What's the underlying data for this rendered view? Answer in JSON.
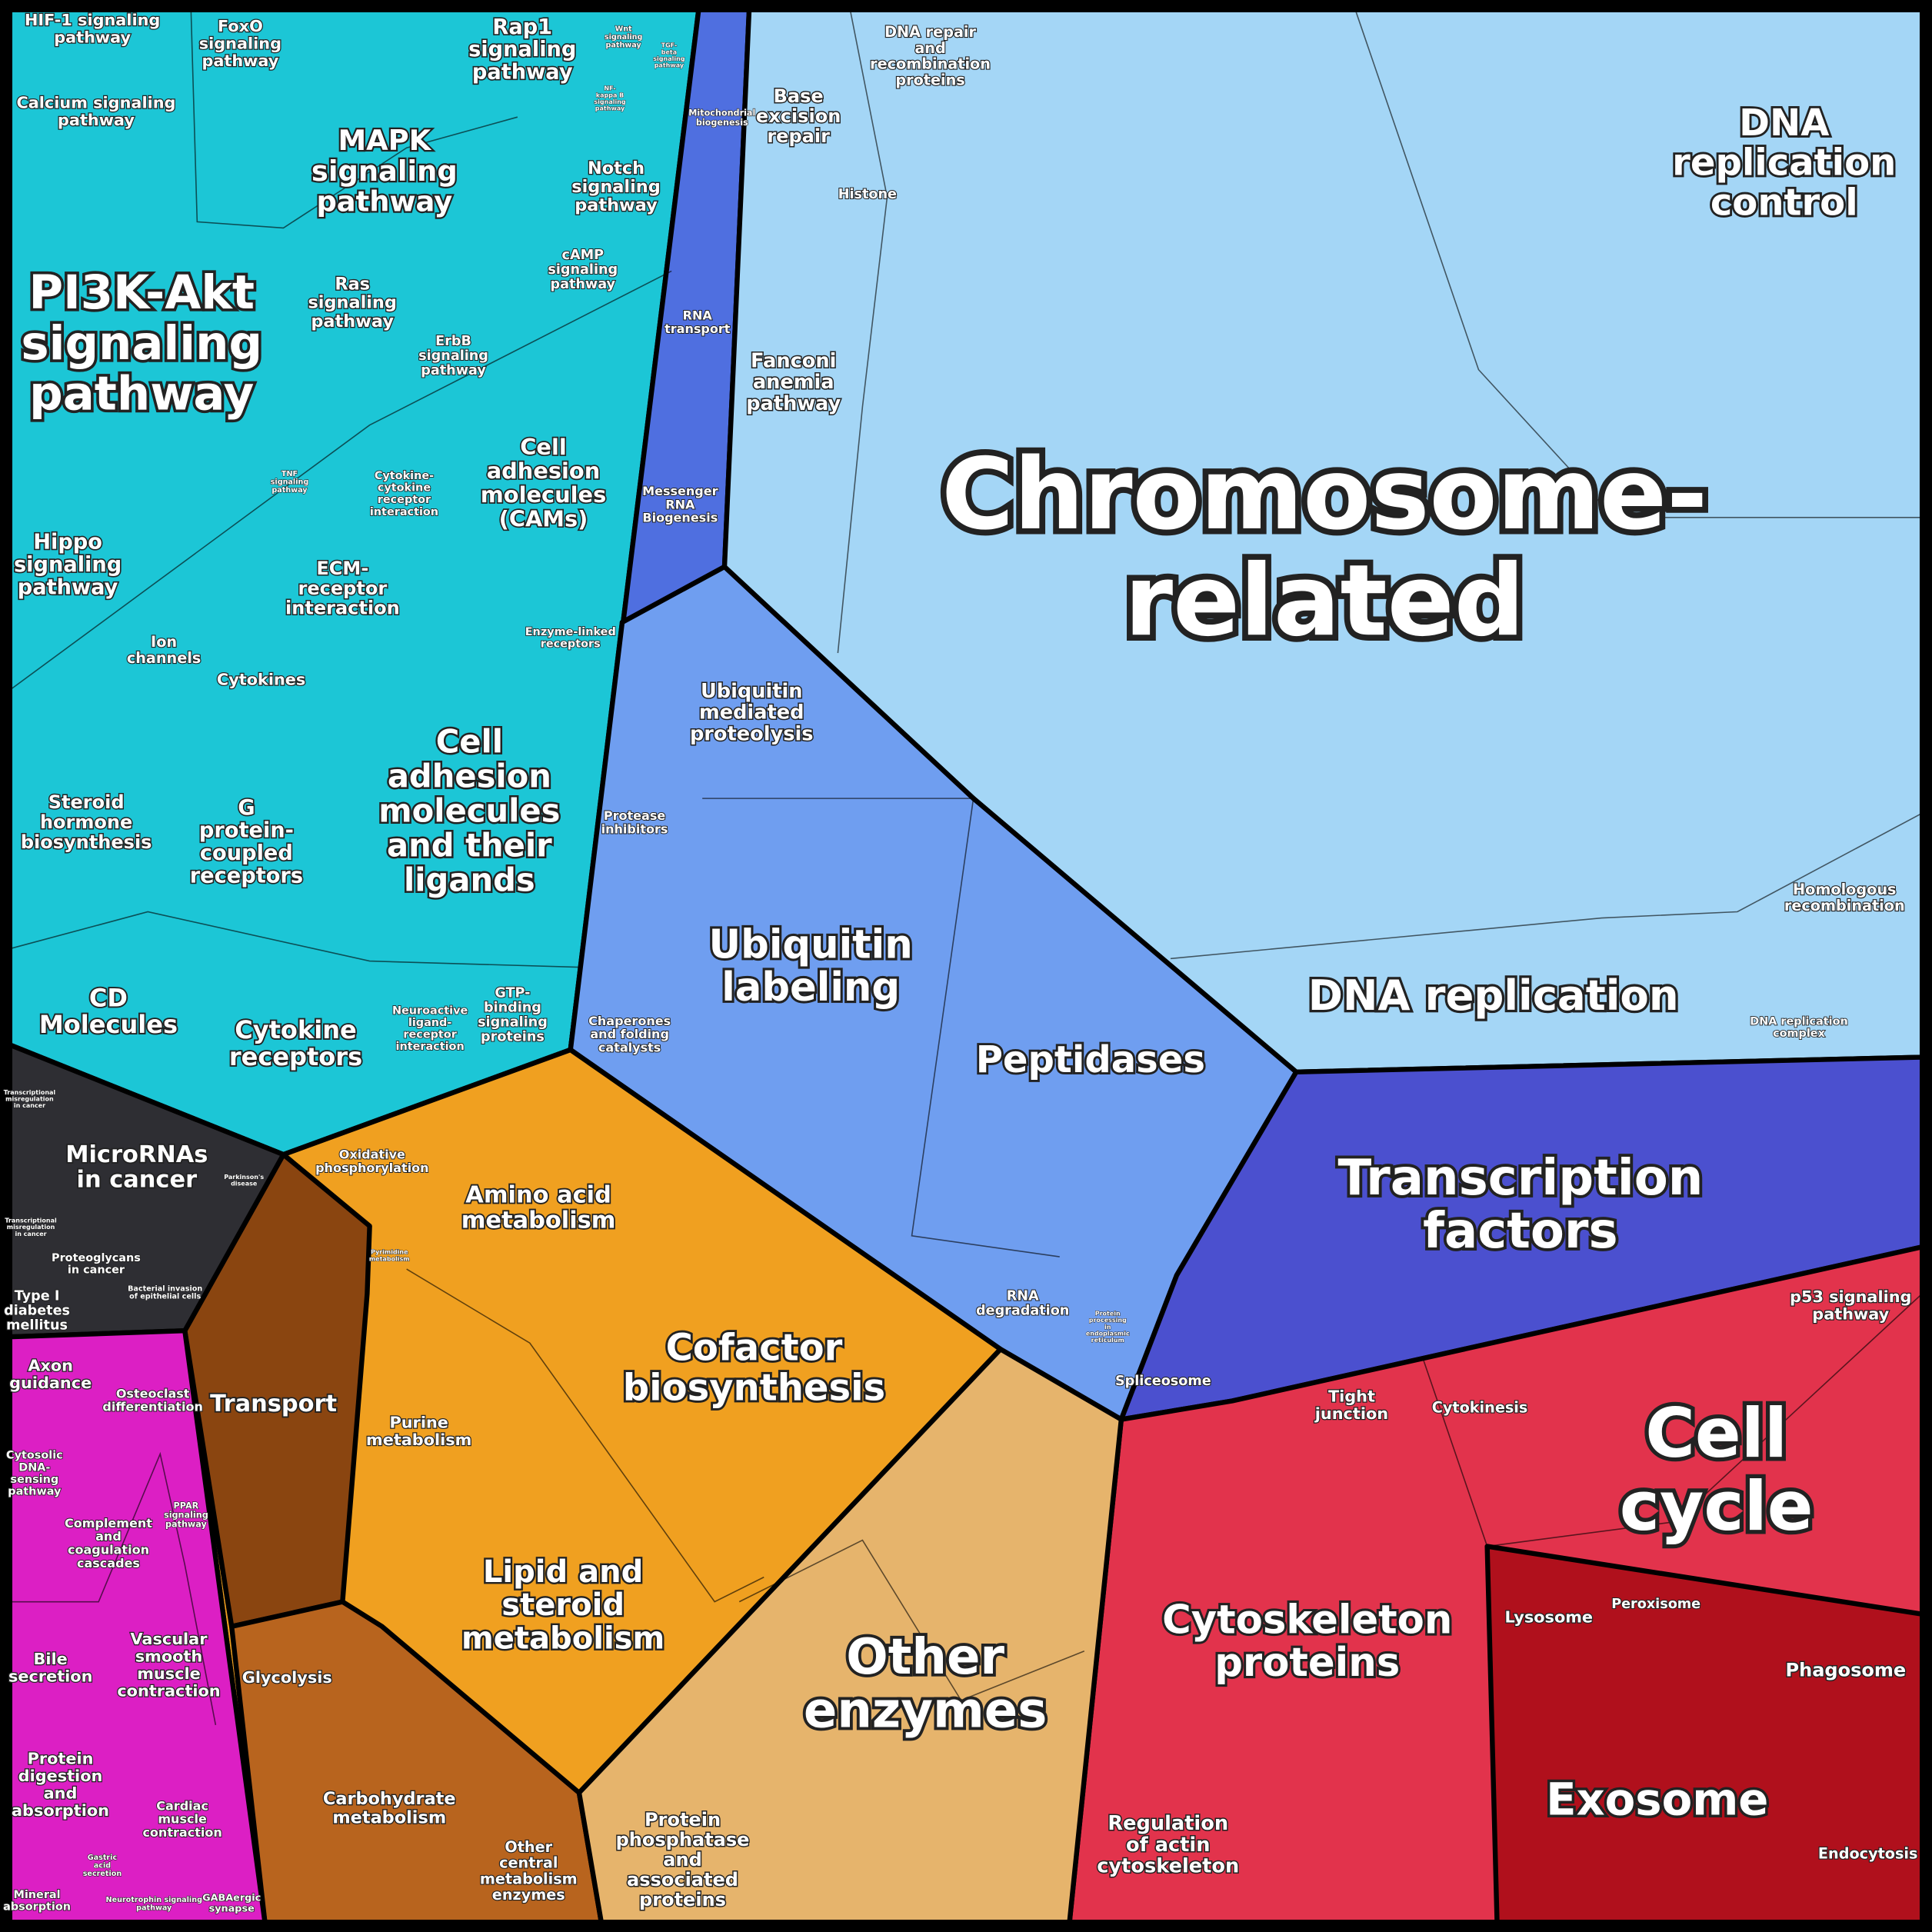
{
  "labels": [
    {
      "lines": [
        "HIF-1 signaling",
        "pathway"
      ]
    },
    {
      "lines": [
        "FoxO",
        "signaling",
        "pathway"
      ]
    },
    {
      "lines": [
        "Rap1",
        "signaling",
        "pathway"
      ]
    },
    {
      "lines": [
        "Wnt",
        "signaling",
        "pathway"
      ]
    },
    {
      "lines": [
        "TGF-",
        "beta",
        "signaling",
        "pathway"
      ]
    },
    {
      "lines": [
        "Calcium signaling",
        "pathway"
      ]
    },
    {
      "lines": [
        "MAPK",
        "signaling",
        "pathway"
      ]
    },
    {
      "lines": [
        "NF-",
        "kappa B",
        "signaling",
        "pathway"
      ]
    },
    {
      "lines": [
        "Mitochondrial",
        "biogenesis"
      ]
    },
    {
      "lines": [
        "Base",
        "excision",
        "repair"
      ]
    },
    {
      "lines": [
        "DNA repair",
        "and",
        "recombination",
        "proteins"
      ]
    },
    {
      "lines": [
        "Notch",
        "signaling",
        "pathway"
      ]
    },
    {
      "lines": [
        "Histone"
      ]
    },
    {
      "lines": [
        "DNA",
        "replication",
        "control"
      ]
    },
    {
      "lines": [
        "PI3K-Akt",
        "signaling",
        "pathway"
      ]
    },
    {
      "lines": [
        "Ras",
        "signaling",
        "pathway"
      ]
    },
    {
      "lines": [
        "cAMP",
        "signaling",
        "pathway"
      ]
    },
    {
      "lines": [
        "ErbB",
        "signaling",
        "pathway"
      ]
    },
    {
      "lines": [
        "RNA",
        "transport"
      ]
    },
    {
      "lines": [
        "Fanconi",
        "anemia",
        "pathway"
      ]
    },
    {
      "lines": [
        "TNF",
        "signaling",
        "pathway"
      ]
    },
    {
      "lines": [
        "Cytokine-",
        "cytokine",
        "receptor",
        "interaction"
      ]
    },
    {
      "lines": [
        "Cell",
        "adhesion",
        "molecules",
        "(CAMs)"
      ]
    },
    {
      "lines": [
        "Messenger",
        "RNA",
        "Biogenesis"
      ]
    },
    {
      "lines": [
        "Chromosome-",
        "related"
      ]
    },
    {
      "lines": [
        "Hippo",
        "signaling",
        "pathway"
      ]
    },
    {
      "lines": [
        "ECM-",
        "receptor",
        "interaction"
      ]
    },
    {
      "lines": [
        "Enzyme-linked",
        "receptors"
      ]
    },
    {
      "lines": [
        "Ion",
        "channels"
      ]
    },
    {
      "lines": [
        "Cytokines"
      ]
    },
    {
      "lines": [
        "Ubiquitin",
        "mediated",
        "proteolysis"
      ]
    },
    {
      "lines": [
        "Protease",
        "inhibitors"
      ]
    },
    {
      "lines": [
        "Cell",
        "adhesion",
        "molecules",
        "and their",
        "ligands"
      ]
    },
    {
      "lines": [
        "Steroid",
        "hormone",
        "biosynthesis"
      ]
    },
    {
      "lines": [
        "G",
        "protein-",
        "coupled",
        "receptors"
      ]
    },
    {
      "lines": [
        "Ubiquitin",
        "labeling"
      ]
    },
    {
      "lines": [
        "Homologous",
        "recombination"
      ]
    },
    {
      "lines": [
        "DNA replication"
      ]
    },
    {
      "lines": [
        "DNA replication",
        "complex"
      ]
    },
    {
      "lines": [
        "CD",
        "Molecules"
      ]
    },
    {
      "lines": [
        "Cytokine",
        "receptors"
      ]
    },
    {
      "lines": [
        "Neuroactive",
        "ligand-",
        "receptor",
        "interaction"
      ]
    },
    {
      "lines": [
        "GTP-",
        "binding",
        "signaling",
        "proteins"
      ]
    },
    {
      "lines": [
        "Chaperones",
        "and folding",
        "catalysts"
      ]
    },
    {
      "lines": [
        "Peptidases"
      ]
    },
    {
      "lines": [
        "Transcriptional",
        "misregulation",
        "in cancer"
      ]
    },
    {
      "lines": [
        "MicroRNAs",
        "in cancer"
      ]
    },
    {
      "lines": [
        "Oxidative",
        "phosphorylation"
      ]
    },
    {
      "lines": [
        "Transcription",
        "factors"
      ]
    },
    {
      "lines": [
        "Parkinson's",
        "disease"
      ]
    },
    {
      "lines": [
        "Amino acid",
        "metabolism"
      ]
    },
    {
      "lines": [
        "Transcriptional",
        "misregulation",
        "in cancer"
      ]
    },
    {
      "lines": [
        "Proteoglycans",
        "in cancer"
      ]
    },
    {
      "lines": [
        "Pyrimidine",
        "metabolism"
      ]
    },
    {
      "lines": [
        "Bacterial invasion",
        "of epithelial cells"
      ]
    },
    {
      "lines": [
        "Type I",
        "diabetes",
        "mellitus"
      ]
    },
    {
      "lines": [
        "p53 signaling",
        "pathway"
      ]
    },
    {
      "lines": [
        "RNA",
        "degradation"
      ]
    },
    {
      "lines": [
        "Protein",
        "processing",
        "in",
        "endoplasmic",
        "reticulum"
      ]
    },
    {
      "lines": [
        "Cofactor",
        "biosynthesis"
      ]
    },
    {
      "lines": [
        "Axon",
        "guidance"
      ]
    },
    {
      "lines": [
        "Osteoclast",
        "differentiation"
      ]
    },
    {
      "lines": [
        "Spliceosome"
      ]
    },
    {
      "lines": [
        "Tight",
        "junction"
      ]
    },
    {
      "lines": [
        "Cytokinesis"
      ]
    },
    {
      "lines": [
        "Transport"
      ]
    },
    {
      "lines": [
        "Cell",
        "cycle"
      ]
    },
    {
      "lines": [
        "Purine",
        "metabolism"
      ]
    },
    {
      "lines": [
        "Cytosolic",
        "DNA-",
        "sensing",
        "pathway"
      ]
    },
    {
      "lines": [
        "PPAR",
        "signaling",
        "pathway"
      ]
    },
    {
      "lines": [
        "Complement",
        "and",
        "coagulation",
        "cascades"
      ]
    },
    {
      "lines": [
        "Lipid and",
        "steroid",
        "metabolism"
      ]
    },
    {
      "lines": [
        "Lysosome"
      ]
    },
    {
      "lines": [
        "Peroxisome"
      ]
    },
    {
      "lines": [
        "Cytoskeleton",
        "proteins"
      ]
    },
    {
      "lines": [
        "Other",
        "enzymes"
      ]
    },
    {
      "lines": [
        "Bile",
        "secretion"
      ]
    },
    {
      "lines": [
        "Vascular",
        "smooth",
        "muscle",
        "contraction"
      ]
    },
    {
      "lines": [
        "Phagosome"
      ]
    },
    {
      "lines": [
        "Glycolysis"
      ]
    },
    {
      "lines": [
        "Protein",
        "digestion",
        "and",
        "absorption"
      ]
    },
    {
      "lines": [
        "Carbohydrate",
        "metabolism"
      ]
    },
    {
      "lines": [
        "Cardiac",
        "muscle",
        "contraction"
      ]
    },
    {
      "lines": [
        "Exosome"
      ]
    },
    {
      "lines": [
        "Regulation",
        "of actin",
        "cytoskeleton"
      ]
    },
    {
      "lines": [
        "Protein",
        "phosphatase",
        "and",
        "associated",
        "proteins"
      ]
    },
    {
      "lines": [
        "Other",
        "central",
        "metabolism",
        "enzymes"
      ]
    },
    {
      "lines": [
        "Endocytosis"
      ]
    },
    {
      "lines": [
        "Gastric",
        "acid",
        "secretion"
      ]
    },
    {
      "lines": [
        "Mineral",
        "absorption"
      ]
    },
    {
      "lines": [
        "Neurotrophin signaling",
        "pathway"
      ]
    },
    {
      "lines": [
        "GABAergic",
        "synapse"
      ]
    }
  ]
}
